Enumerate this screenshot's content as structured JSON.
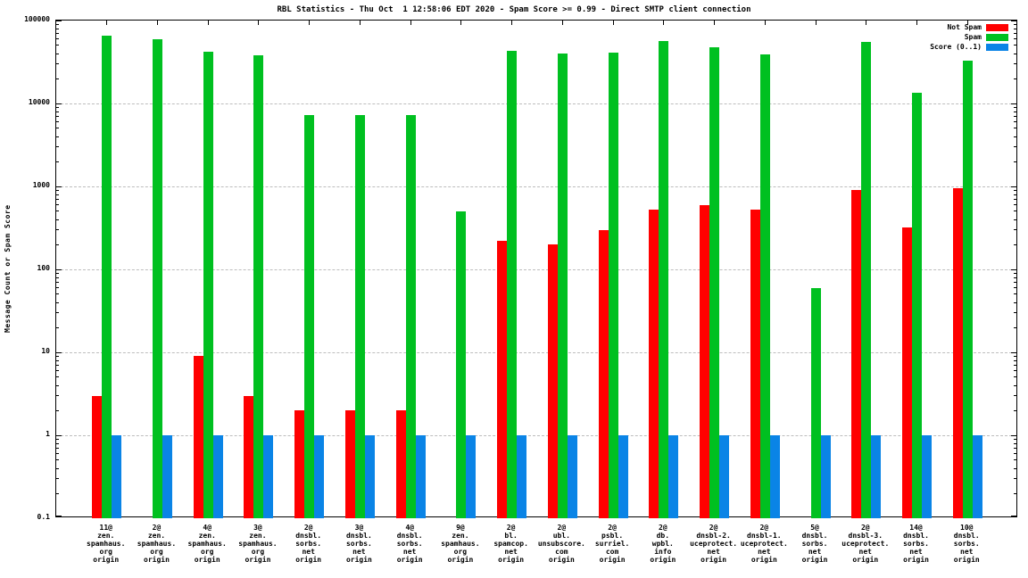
{
  "chart_data": {
    "type": "bar",
    "title": "RBL Statistics - Thu Oct  1 12:58:06 EDT 2020 - Spam Score >= 0.99 - Direct SMTP client connection",
    "ylabel": "Message Count or Spam Score",
    "y_scale": "log",
    "ylim": [
      0.1,
      100000
    ],
    "yticks": [
      0.1,
      1,
      10,
      100,
      1000,
      10000,
      100000
    ],
    "ytick_labels": [
      "0.1",
      "1",
      "10",
      "100",
      "1000",
      "10000",
      "100000"
    ],
    "grid": true,
    "legend_position": "top-right-inside",
    "colors": {
      "not_spam": "#ff0000",
      "spam": "#00c020",
      "score": "#0a84e6",
      "gridline": "#bdbdbd",
      "axis": "#000000"
    },
    "categories": [
      "11@\nzen.\nspamhaus.\norg\norigin",
      "2@\nzen.\nspamhaus.\norg\norigin",
      "4@\nzen.\nspamhaus.\norg\norigin",
      "3@\nzen.\nspamhaus.\norg\norigin",
      "2@\ndnsbl.\nsorbs.\nnet\norigin",
      "3@\ndnsbl.\nsorbs.\nnet\norigin",
      "4@\ndnsbl.\nsorbs.\nnet\norigin",
      "9@\nzen.\nspamhaus.\norg\norigin",
      "2@\nbl.\nspamcop.\nnet\norigin",
      "2@\nubl.\nunsubscore.\ncom\norigin",
      "2@\npsbl.\nsurriel.\ncom\norigin",
      "2@\ndb.\nwpbl.\ninfo\norigin",
      "2@\ndnsbl-2.\nuceprotect.\nnet\norigin",
      "2@\ndnsbl-1.\nuceprotect.\nnet\norigin",
      "5@\ndnsbl.\nsorbs.\nnet\norigin",
      "2@\ndnsbl-3.\nuceprotect.\nnet\norigin",
      "14@\ndnsbl.\nsorbs.\nnet\norigin",
      "10@\ndnsbl.\nsorbs.\nnet\norigin"
    ],
    "series": [
      {
        "name": "Not Spam",
        "color": "#ff0000",
        "values": [
          3,
          0,
          9,
          3,
          2,
          2,
          2,
          0,
          220,
          200,
          300,
          530,
          590,
          530,
          0,
          900,
          320,
          950
        ]
      },
      {
        "name": "Spam",
        "color": "#00c020",
        "values": [
          65000,
          59000,
          42000,
          38000,
          7200,
          7200,
          7200,
          500,
          43000,
          40000,
          41000,
          56000,
          48000,
          39000,
          60,
          55000,
          13500,
          33000
        ]
      },
      {
        "name": "Score (0..1)",
        "color": "#0a84e6",
        "values": [
          0.99,
          0.99,
          0.99,
          0.99,
          0.99,
          0.99,
          0.99,
          0.99,
          0.99,
          0.99,
          0.99,
          0.99,
          0.99,
          0.99,
          0.99,
          0.99,
          0.99,
          0.99
        ]
      }
    ]
  }
}
